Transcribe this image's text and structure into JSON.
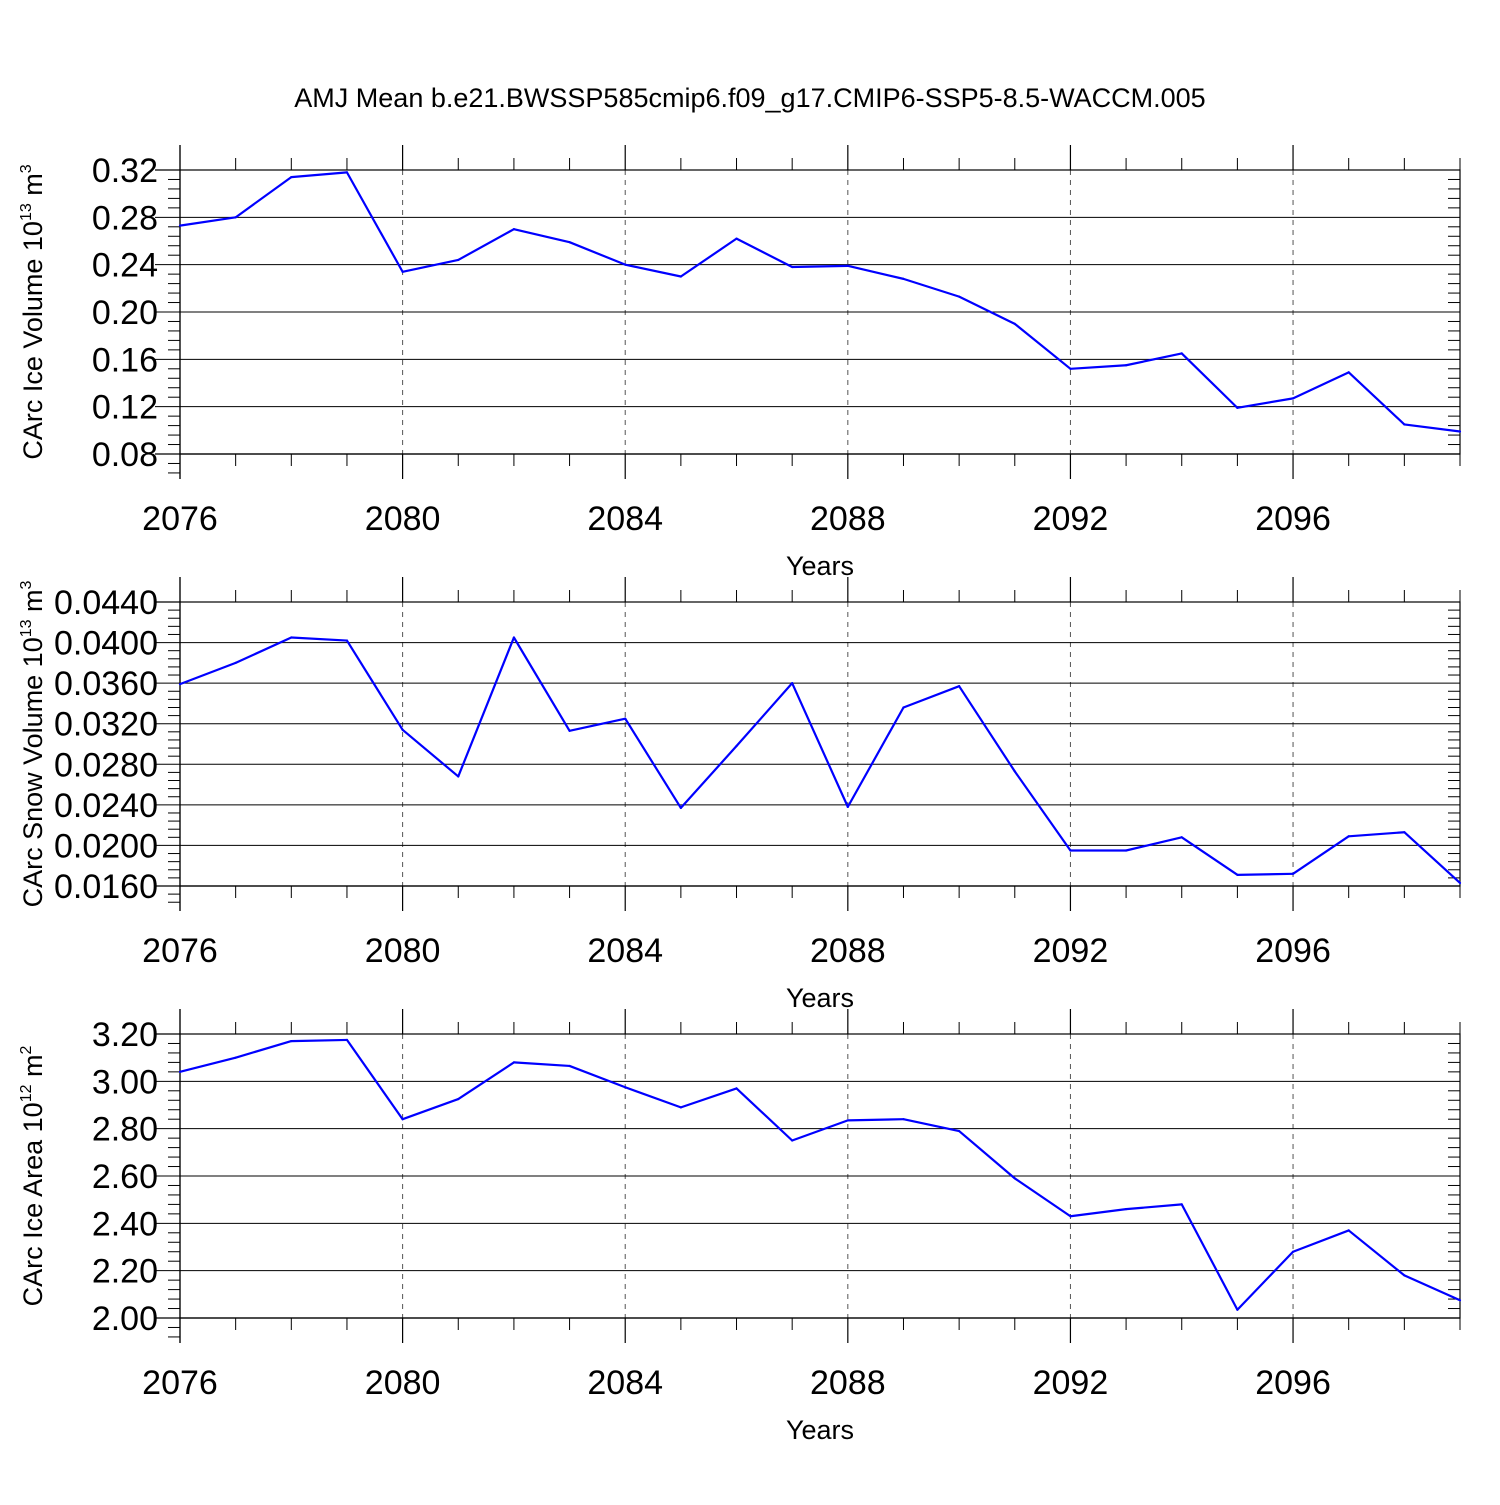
{
  "title": "AMJ Mean b.e21.BWSSP585cmip6.f09_g17.CMIP6-SSP5-8.5-WACCM.005",
  "line_color": "#0000ff",
  "chart_data": [
    {
      "type": "line",
      "ylabel": "CArc Ice Volume 10",
      "ylabel_exp": "13",
      "ylabel_unit": " m",
      "ylabel_unit_exp": "3",
      "xlabel": "Years",
      "xlim": [
        2076,
        2099
      ],
      "ylim": [
        0.08,
        0.32
      ],
      "x_ticks": [
        2076,
        2080,
        2084,
        2088,
        2092,
        2096
      ],
      "x_tick_labels": [
        "2076",
        "2080",
        "2084",
        "2088",
        "2092",
        "2096"
      ],
      "y_ticks": [
        0.08,
        0.12,
        0.16,
        0.2,
        0.24,
        0.28,
        0.32
      ],
      "y_tick_labels": [
        "0.08",
        "0.12",
        "0.16",
        "0.20",
        "0.24",
        "0.28",
        "0.32"
      ],
      "grid": "dashed vertical at major x ticks",
      "x": [
        2076,
        2077,
        2078,
        2079,
        2080,
        2081,
        2082,
        2083,
        2084,
        2085,
        2086,
        2087,
        2088,
        2089,
        2090,
        2091,
        2092,
        2093,
        2094,
        2095,
        2096,
        2097,
        2098,
        2099
      ],
      "y": [
        0.273,
        0.28,
        0.314,
        0.318,
        0.234,
        0.244,
        0.27,
        0.259,
        0.24,
        0.23,
        0.262,
        0.238,
        0.239,
        0.228,
        0.213,
        0.19,
        0.152,
        0.155,
        0.165,
        0.119,
        0.127,
        0.149,
        0.105,
        0.099
      ]
    },
    {
      "type": "line",
      "ylabel": "CArc Snow Volume 10",
      "ylabel_exp": "13",
      "ylabel_unit": " m",
      "ylabel_unit_exp": "3",
      "xlabel": "Years",
      "xlim": [
        2076,
        2099
      ],
      "ylim": [
        0.016,
        0.044
      ],
      "x_ticks": [
        2076,
        2080,
        2084,
        2088,
        2092,
        2096
      ],
      "x_tick_labels": [
        "2076",
        "2080",
        "2084",
        "2088",
        "2092",
        "2096"
      ],
      "y_ticks": [
        0.016,
        0.02,
        0.024,
        0.028,
        0.032,
        0.036,
        0.04,
        0.044
      ],
      "y_tick_labels": [
        "0.0160",
        "0.0200",
        "0.0240",
        "0.0280",
        "0.0320",
        "0.0360",
        "0.0400",
        "0.0440"
      ],
      "grid": "dashed vertical at major x ticks",
      "x": [
        2076,
        2077,
        2078,
        2079,
        2080,
        2081,
        2082,
        2083,
        2084,
        2085,
        2086,
        2087,
        2088,
        2089,
        2090,
        2091,
        2092,
        2093,
        2094,
        2095,
        2096,
        2097,
        2098,
        2099
      ],
      "y": [
        0.0359,
        0.038,
        0.0405,
        0.0402,
        0.0314,
        0.0268,
        0.0405,
        0.0313,
        0.0325,
        0.0237,
        0.0298,
        0.036,
        0.0238,
        0.0336,
        0.0357,
        0.0273,
        0.0195,
        0.0195,
        0.0208,
        0.0171,
        0.0172,
        0.0209,
        0.0213,
        0.0163
      ]
    },
    {
      "type": "line",
      "ylabel": "CArc Ice Area 10",
      "ylabel_exp": "12",
      "ylabel_unit": " m",
      "ylabel_unit_exp": "2",
      "xlabel": "Years",
      "xlim": [
        2076,
        2099
      ],
      "ylim": [
        2.0,
        3.2
      ],
      "x_ticks": [
        2076,
        2080,
        2084,
        2088,
        2092,
        2096
      ],
      "x_tick_labels": [
        "2076",
        "2080",
        "2084",
        "2088",
        "2092",
        "2096"
      ],
      "y_ticks": [
        2.0,
        2.2,
        2.4,
        2.6,
        2.8,
        3.0,
        3.2
      ],
      "y_tick_labels": [
        "2.00",
        "2.20",
        "2.40",
        "2.60",
        "2.80",
        "3.00",
        "3.20"
      ],
      "grid": "dashed vertical at major x ticks",
      "x": [
        2076,
        2077,
        2078,
        2079,
        2080,
        2081,
        2082,
        2083,
        2084,
        2085,
        2086,
        2087,
        2088,
        2089,
        2090,
        2091,
        2092,
        2093,
        2094,
        2095,
        2096,
        2097,
        2098,
        2099
      ],
      "y": [
        3.04,
        3.1,
        3.17,
        3.175,
        2.84,
        2.925,
        3.08,
        3.065,
        2.975,
        2.89,
        2.97,
        2.75,
        2.835,
        2.84,
        2.79,
        2.59,
        2.43,
        2.46,
        2.48,
        2.035,
        2.28,
        2.37,
        2.18,
        2.075
      ]
    }
  ]
}
